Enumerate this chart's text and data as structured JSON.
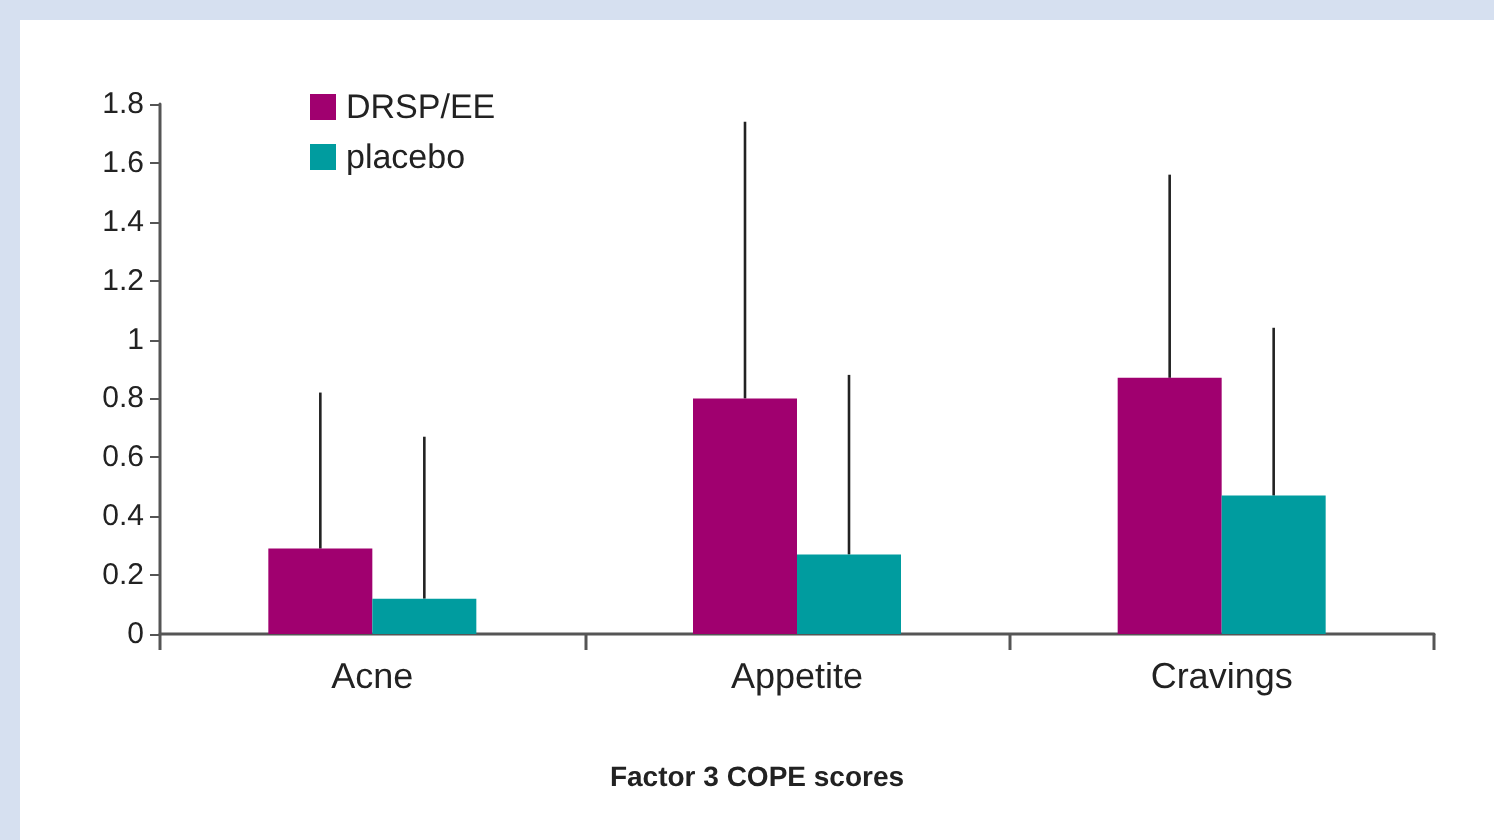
{
  "chart_data": {
    "type": "bar",
    "xlabel": "Factor 3 COPE scores",
    "categories": [
      "Acne",
      "Appetite",
      "Cravings"
    ],
    "series": [
      {
        "name": "DRSP/EE",
        "color": "#a0006f",
        "values": [
          0.29,
          0.8,
          0.87
        ],
        "errors": [
          [
            0.29,
            0.82
          ],
          [
            0.8,
            1.74
          ],
          [
            0.87,
            1.56
          ]
        ]
      },
      {
        "name": "placebo",
        "color": "#009c9f",
        "values": [
          0.12,
          0.27,
          0.47
        ],
        "errors": [
          [
            0.12,
            0.67
          ],
          [
            0.27,
            0.88
          ],
          [
            0.47,
            1.04
          ]
        ]
      }
    ],
    "ylim": [
      0,
      1.8
    ],
    "yticks": [
      0,
      0.2,
      0.4,
      0.6,
      0.8,
      1,
      1.2,
      1.4,
      1.6,
      1.8
    ],
    "grid": false,
    "legend": "top left"
  }
}
